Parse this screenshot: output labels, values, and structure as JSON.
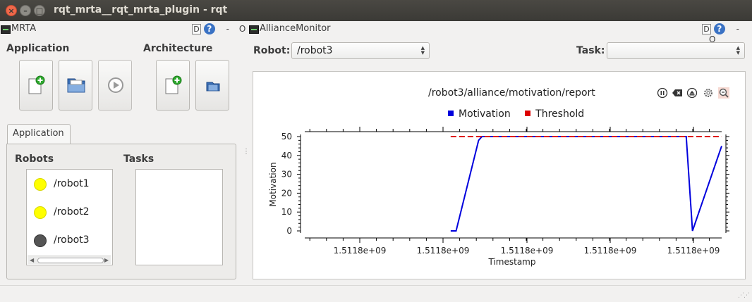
{
  "window": {
    "title": "rqt_mrta__rqt_mrta_plugin - rqt",
    "close_glyph": "×",
    "min_glyph": "–",
    "max_glyph": "□"
  },
  "mrta_dock": {
    "title": "MRTA",
    "d_label": "D",
    "help_label": "?",
    "minimize_label": "-",
    "close_label": "O",
    "application_section": "Application",
    "architecture_section": "Architecture",
    "tab_label": "Application",
    "robots_label": "Robots",
    "tasks_label": "Tasks",
    "robots": [
      {
        "name": "/robot1",
        "color": "#ffff00"
      },
      {
        "name": "/robot2",
        "color": "#ffff00"
      },
      {
        "name": "/robot3",
        "color": "#555555"
      }
    ],
    "tasks": []
  },
  "alliance_dock": {
    "title": "AllianceMonitor",
    "d_label": "D",
    "help_label": "?",
    "minimize_label": "-",
    "close_label": "O",
    "robot_label": "Robot:",
    "robot_value": "/robot3",
    "task_label": "Task:",
    "task_value": ""
  },
  "chart_data": {
    "type": "line",
    "title": "/robot3/alliance/motivation/report",
    "xlabel": "Timestamp",
    "ylabel": "Motivation",
    "ylim": [
      0,
      50
    ],
    "yticks": [
      0,
      10,
      20,
      30,
      40,
      50
    ],
    "xtick_labels": [
      "1.5118e+09",
      "1.5118e+09",
      "1.5118e+09",
      "1.5118e+09",
      "1.5118e+09"
    ],
    "xlim": [
      0,
      100
    ],
    "legend": "top-center",
    "series": [
      {
        "name": "Motivation",
        "color": "#0000dd",
        "style": "solid",
        "x": [
          35.0,
          36.3,
          41.7,
          42.5,
          91.5,
          93.0,
          100.0
        ],
        "y": [
          0,
          0,
          48,
          50,
          50,
          0,
          45
        ]
      },
      {
        "name": "Threshold",
        "color": "#dd0000",
        "style": "dashed",
        "x": [
          35.0,
          100.0
        ],
        "y": [
          50,
          50
        ]
      }
    ]
  }
}
